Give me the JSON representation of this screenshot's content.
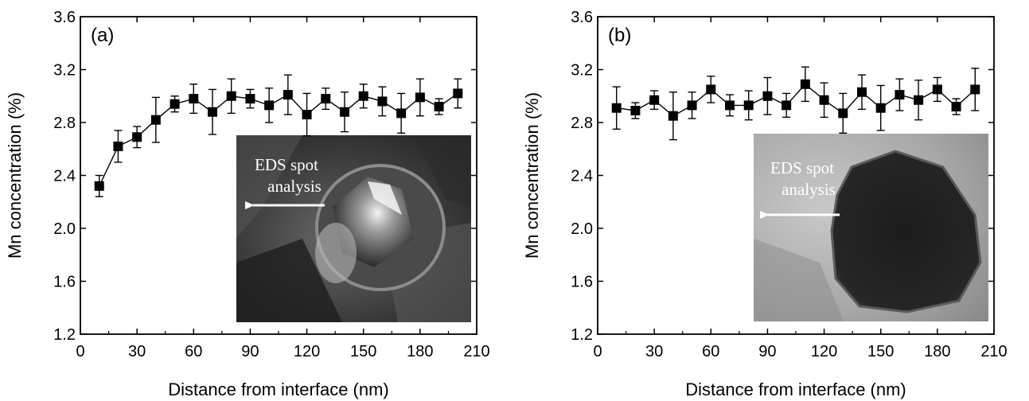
{
  "chart_data": [
    {
      "type": "scatter",
      "panel_label": "(a)",
      "xlabel": "Distance from interface (nm)",
      "ylabel": "Mn concentration (%)",
      "xlim": [
        0,
        210
      ],
      "ylim": [
        1.2,
        3.6
      ],
      "xticks": [
        0,
        30,
        60,
        90,
        120,
        150,
        180,
        210
      ],
      "yticks": [
        1.2,
        1.6,
        2.0,
        2.4,
        2.8,
        3.2,
        3.6
      ],
      "ytick_labels": [
        "1.2",
        "1.6",
        "2.0",
        "2.4",
        "2.8",
        "3.2",
        "3.6"
      ],
      "x": [
        10,
        20,
        30,
        40,
        50,
        60,
        70,
        80,
        90,
        100,
        110,
        120,
        130,
        140,
        150,
        160,
        170,
        180,
        190,
        200
      ],
      "y": [
        2.32,
        2.62,
        2.69,
        2.82,
        2.94,
        2.98,
        2.88,
        3.0,
        2.98,
        2.93,
        3.01,
        2.86,
        2.98,
        2.88,
        3.0,
        2.96,
        2.87,
        2.99,
        2.92,
        3.02
      ],
      "yerr": [
        0.08,
        0.12,
        0.08,
        0.17,
        0.06,
        0.11,
        0.17,
        0.13,
        0.07,
        0.13,
        0.15,
        0.16,
        0.08,
        0.15,
        0.09,
        0.11,
        0.15,
        0.14,
        0.06,
        0.11
      ],
      "inset": {
        "annotation_line1": "EDS spot",
        "annotation_line2": "analysis"
      },
      "grid": false,
      "marker": "square"
    },
    {
      "type": "scatter",
      "panel_label": "(b)",
      "xlabel": "Distance from interface (nm)",
      "ylabel": "Mn concentration (%)",
      "xlim": [
        0,
        210
      ],
      "ylim": [
        1.2,
        3.6
      ],
      "xticks": [
        0,
        30,
        60,
        90,
        120,
        150,
        180,
        210
      ],
      "yticks": [
        1.2,
        1.6,
        2.0,
        2.4,
        2.8,
        3.2,
        3.6
      ],
      "ytick_labels": [
        "1.2",
        "1.6",
        "2.0",
        "2.4",
        "2.8",
        "3.2",
        "3.6"
      ],
      "x": [
        10,
        20,
        30,
        40,
        50,
        60,
        70,
        80,
        90,
        100,
        110,
        120,
        130,
        140,
        150,
        160,
        170,
        180,
        190,
        200
      ],
      "y": [
        2.91,
        2.89,
        2.97,
        2.85,
        2.93,
        3.05,
        2.93,
        2.93,
        3.0,
        2.93,
        3.09,
        2.97,
        2.87,
        3.03,
        2.91,
        3.01,
        2.97,
        3.05,
        2.92,
        3.05
      ],
      "yerr": [
        0.16,
        0.06,
        0.07,
        0.18,
        0.1,
        0.1,
        0.08,
        0.11,
        0.14,
        0.09,
        0.13,
        0.13,
        0.15,
        0.13,
        0.17,
        0.12,
        0.15,
        0.09,
        0.06,
        0.16
      ],
      "inset": {
        "annotation_line1": "EDS spot",
        "annotation_line2": "analysis"
      },
      "grid": false,
      "marker": "square"
    }
  ]
}
